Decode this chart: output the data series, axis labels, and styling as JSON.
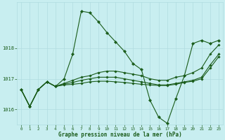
{
  "title": "Graphe pression niveau de la mer (hPa)",
  "bg_color": "#c8eef0",
  "grid_color": "#b0dce0",
  "line_color": "#1a5c1a",
  "marker_color": "#1a5c1a",
  "ylim": [
    1015.5,
    1019.5
  ],
  "xlim": [
    -0.5,
    23.5
  ],
  "yticks": [
    1016,
    1017,
    1018
  ],
  "xticks": [
    0,
    1,
    2,
    3,
    4,
    5,
    6,
    7,
    8,
    9,
    10,
    11,
    12,
    13,
    14,
    15,
    16,
    17,
    18,
    19,
    20,
    21,
    22,
    23
  ],
  "series": [
    [
      1016.65,
      1016.1,
      1016.65,
      1016.9,
      1016.75,
      1017.0,
      1017.8,
      1019.2,
      1019.15,
      1018.85,
      1018.5,
      1018.2,
      1017.9,
      1017.5,
      1017.3,
      1016.3,
      1015.75,
      1015.55,
      1016.35,
      1017.1,
      1018.15,
      1018.25,
      1018.15,
      1018.25
    ],
    [
      1016.65,
      1016.1,
      1016.65,
      1016.9,
      1016.75,
      1016.85,
      1016.95,
      1017.05,
      1017.1,
      1017.2,
      1017.25,
      1017.25,
      1017.2,
      1017.15,
      1017.1,
      1017.0,
      1016.95,
      1016.95,
      1017.05,
      1017.1,
      1017.2,
      1017.35,
      1017.8,
      1018.1
    ],
    [
      1016.65,
      1016.1,
      1016.65,
      1016.9,
      1016.75,
      1016.82,
      1016.88,
      1016.95,
      1017.0,
      1017.05,
      1017.05,
      1017.05,
      1017.0,
      1016.95,
      1016.9,
      1016.85,
      1016.8,
      1016.8,
      1016.85,
      1016.9,
      1016.95,
      1017.05,
      1017.45,
      1017.8
    ],
    [
      1016.65,
      1016.1,
      1016.65,
      1016.9,
      1016.75,
      1016.8,
      1016.82,
      1016.85,
      1016.9,
      1016.92,
      1016.92,
      1016.9,
      1016.88,
      1016.85,
      1016.82,
      1016.8,
      1016.78,
      1016.78,
      1016.82,
      1016.88,
      1016.92,
      1017.0,
      1017.35,
      1017.72
    ]
  ]
}
